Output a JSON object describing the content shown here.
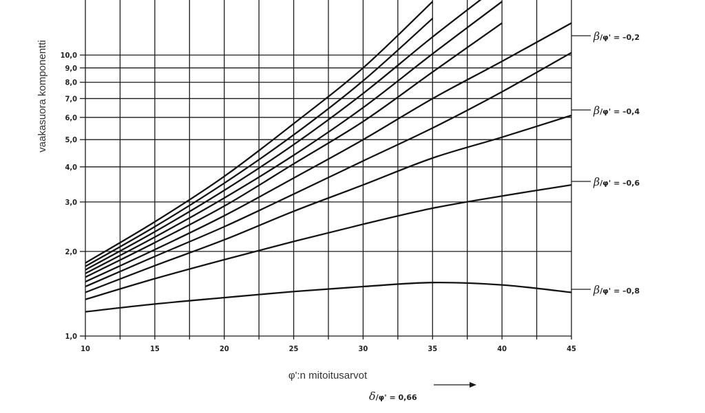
{
  "chart_data": {
    "type": "line",
    "title": "",
    "xlabel": "φ':n mitoitusarvot",
    "ylabel": "vaakasuora komponentti",
    "x_scale": "linear",
    "y_scale": "log",
    "xlim": [
      10,
      45
    ],
    "ylim": [
      1.0,
      15.7
    ],
    "grid": true,
    "x_ticks": [
      10,
      15,
      20,
      25,
      30,
      35,
      40,
      45
    ],
    "x_tick_labels": [
      "10",
      "15",
      "20",
      "25",
      "30",
      "35",
      "40",
      "45"
    ],
    "y_ticks": [
      1.0,
      2.0,
      3.0,
      4.0,
      5.0,
      6.0,
      7.0,
      8.0,
      9.0,
      10.0
    ],
    "y_tick_labels": [
      "1,0",
      "2,0",
      "3,0",
      "4,0",
      "5,0",
      "6,0",
      "7,0",
      "8,0",
      "9,0",
      "10,0"
    ],
    "x": [
      10,
      15,
      20,
      25,
      30,
      35,
      40,
      45
    ],
    "series": [
      {
        "name": "",
        "values": [
          1.82,
          2.55,
          3.7,
          5.7,
          9.0,
          15.5,
          null,
          null
        ]
      },
      {
        "name": "",
        "values": [
          1.77,
          2.45,
          3.5,
          5.2,
          8.1,
          13.5,
          null,
          null
        ]
      },
      {
        "name": "",
        "values": [
          1.72,
          2.35,
          3.3,
          4.8,
          7.3,
          11.6,
          18.0,
          null
        ]
      },
      {
        "name": "",
        "values": [
          1.67,
          2.25,
          3.1,
          4.4,
          6.5,
          10.1,
          15.5,
          null
        ]
      },
      {
        "name": "",
        "values": [
          1.62,
          2.15,
          2.9,
          4.1,
          5.8,
          8.7,
          13.0,
          null
        ]
      },
      {
        "name": "β/φ' = –0,2",
        "values": [
          1.56,
          2.03,
          2.68,
          3.65,
          5.0,
          7.0,
          9.5,
          13.0
        ]
      },
      {
        "name": "",
        "values": [
          1.5,
          1.92,
          2.45,
          3.2,
          4.2,
          5.5,
          7.4,
          10.2
        ]
      },
      {
        "name": "β/φ' = –0,4",
        "values": [
          1.43,
          1.78,
          2.2,
          2.78,
          3.45,
          4.3,
          5.1,
          6.1
        ]
      },
      {
        "name": "β/φ' = –0,6",
        "values": [
          1.35,
          1.6,
          1.87,
          2.17,
          2.5,
          2.85,
          3.15,
          3.45
        ]
      },
      {
        "name": "β/φ' = –0,8",
        "values": [
          1.22,
          1.3,
          1.37,
          1.44,
          1.5,
          1.55,
          1.52,
          1.43
        ]
      }
    ],
    "label_denominator": "φ' = 0,66",
    "label_numerator": "δ",
    "labels": {
      "s02": {
        "beta": "β",
        "rest": "/φ' = –0,2"
      },
      "s04": {
        "beta": "β",
        "rest": "/φ' = –0,4"
      },
      "s06": {
        "beta": "β",
        "rest": "/φ' = –0,6"
      },
      "s08": {
        "beta": "β",
        "rest": "/φ' = –0,8"
      }
    },
    "delta_label": {
      "delta": "δ",
      "rest": "/φ' = 0,66"
    }
  }
}
